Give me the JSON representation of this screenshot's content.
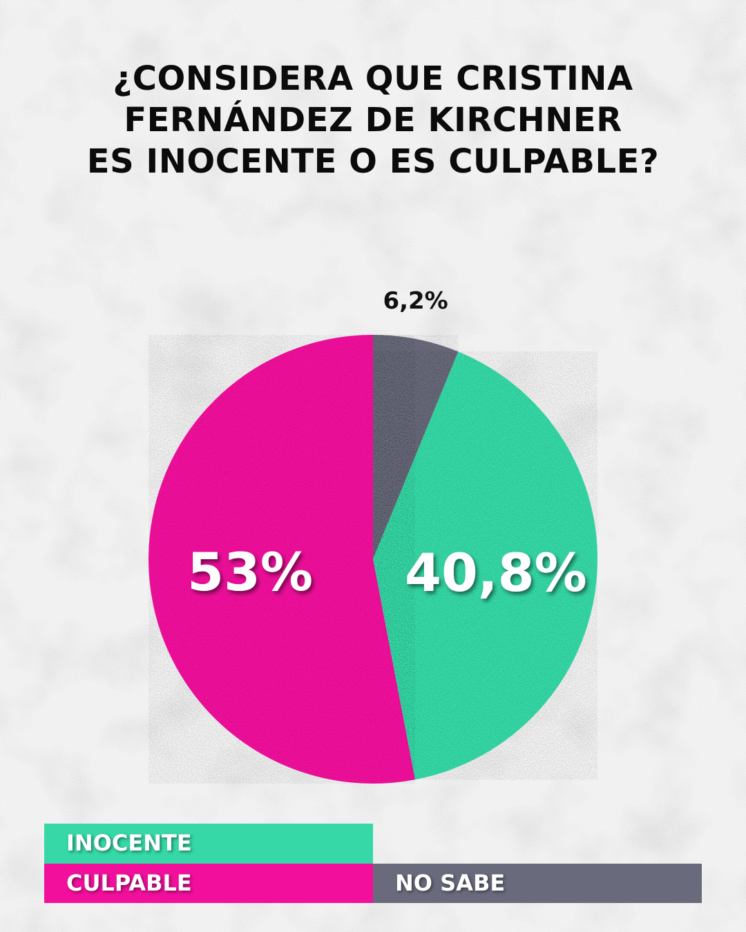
{
  "title_lines": [
    "¿CONSIDERA QUE CRISTINA",
    "FERNÁNDEZ DE KIRCHNER",
    "ES INOCENTE O ES CULPABLE?"
  ],
  "colors": {
    "inocente": "#35d8a6",
    "culpable": "#f10f9c",
    "no_sabe": "#696b7c",
    "background": "#ebebeb"
  },
  "chart_data": {
    "type": "pie",
    "title": "¿CONSIDERA QUE CRISTINA FERNÁNDEZ DE KIRCHNER ES INOCENTE O ES CULPABLE?",
    "slices": [
      {
        "label": "NO SABE",
        "value": 6.2,
        "display": "6,2%",
        "color": "#696b7c"
      },
      {
        "label": "INOCENTE",
        "value": 40.8,
        "display": "40,8%",
        "color": "#35d8a6"
      },
      {
        "label": "CULPABLE",
        "value": 53,
        "display": "53%",
        "color": "#f10f9c"
      }
    ],
    "legend_position": "bottom"
  },
  "legend": {
    "inocente": "INOCENTE",
    "culpable": "CULPABLE",
    "no_sabe": "NO SABE"
  }
}
